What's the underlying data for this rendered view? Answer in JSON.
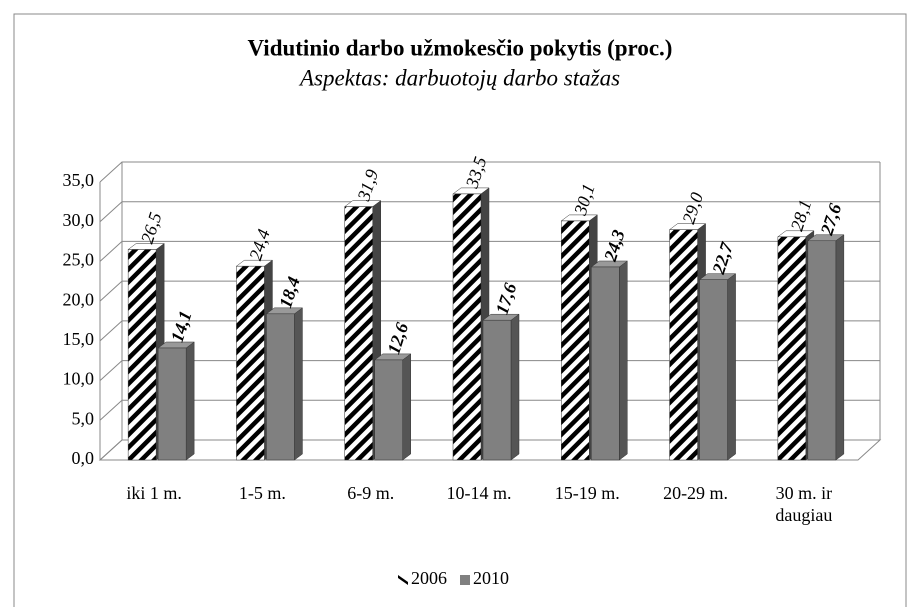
{
  "chart_data": {
    "type": "bar3d",
    "title": "Vidutinio  darbo  užmokesčio  pokytis (proc.)",
    "subtitle": "Aspektas: darbuotojų darbo stažas",
    "categories": [
      "iki 1 m.",
      "1-5 m.",
      "6-9 m.",
      "10-14 m.",
      "15-19 m.",
      "20-29 m.",
      "30 m. ir daugiau"
    ],
    "series": [
      {
        "name": "2006",
        "color": "hatch",
        "values": [
          26.5,
          24.4,
          31.9,
          33.5,
          30.1,
          29.0,
          28.1
        ],
        "value_labels": [
          "26,5",
          "24,4",
          "31,9",
          "33,5",
          "30,1",
          "29,0",
          "28,1"
        ]
      },
      {
        "name": "2010",
        "color": "#808080",
        "values": [
          14.1,
          18.4,
          12.6,
          17.6,
          24.3,
          22.7,
          27.6
        ],
        "value_labels": [
          "14,1",
          "18,4",
          "12,6",
          "17,6",
          "24,3",
          "22,7",
          "27,6"
        ]
      }
    ],
    "ylim": [
      0,
      35
    ],
    "yticks": [
      {
        "value": 0,
        "label": "0,0"
      },
      {
        "value": 5,
        "label": "5,0"
      },
      {
        "value": 10,
        "label": "10,0"
      },
      {
        "value": 15,
        "label": "15,0"
      },
      {
        "value": 20,
        "label": "20,0"
      },
      {
        "value": 25,
        "label": "25,0"
      },
      {
        "value": 30,
        "label": "30,0"
      },
      {
        "value": 35,
        "label": "35,0"
      }
    ],
    "grid": true,
    "legend": "bottom"
  }
}
